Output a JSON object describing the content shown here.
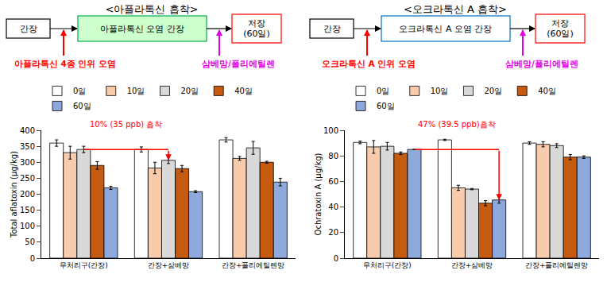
{
  "panels": [
    {
      "title": "<아플라톡신 흡착>",
      "flow": {
        "boxes": [
          [
            "간장"
          ],
          [
            "아플라톡신 오염 간장"
          ],
          [
            "저장",
            "(60일)"
          ]
        ],
        "inputs": [
          {
            "text": "아플라톡신 4종 인위 오염",
            "color": "#ff0000"
          },
          {
            "text": "삼베망/폴리에틸렌",
            "color": "#e000e0"
          }
        ]
      }
    },
    {
      "title": "<오크라톡신 A 흡착>",
      "flow": {
        "boxes": [
          [
            "간장"
          ],
          [
            "오크라톡신 A 오염 간장"
          ],
          [
            "저장",
            "(60일)"
          ]
        ],
        "inputs": [
          {
            "text": "오크라톡신 A 인위 오염",
            "color": "#ff0000"
          },
          {
            "text": "삼베망/폴리에틸렌",
            "color": "#e000e0"
          }
        ]
      }
    }
  ],
  "chart_data": [
    {
      "type": "bar",
      "y_label": "Total aflatoxin (μg/kg)",
      "categories": [
        "무처리구(간장)",
        "간장+삼베망",
        "간장+폴리에틸렌망"
      ],
      "series": [
        {
          "name": "0일",
          "color": "#ffffff",
          "values": [
            360,
            340,
            370
          ],
          "errors": [
            10,
            8,
            7
          ]
        },
        {
          "name": "10일",
          "color": "#f8cbad",
          "values": [
            330,
            282,
            312
          ],
          "errors": [
            20,
            18,
            6
          ]
        },
        {
          "name": "20일",
          "color": "#d9d9d9",
          "values": [
            340,
            306,
            345
          ],
          "errors": [
            10,
            10,
            20
          ]
        },
        {
          "name": "40일",
          "color": "#c55a11",
          "values": [
            290,
            280,
            300
          ],
          "errors": [
            12,
            10,
            3
          ]
        },
        {
          "name": "60일",
          "color": "#8ea9db",
          "values": [
            220,
            208,
            238
          ],
          "errors": [
            5,
            3,
            12
          ]
        }
      ],
      "ylim": [
        0,
        400
      ],
      "yticks": [
        0,
        50,
        100,
        150,
        200,
        250,
        300,
        350,
        400
      ],
      "grid": false,
      "legend": "top",
      "annotations": [
        {
          "text": "10% (35 ppb) 흡착",
          "from": "무처리구(간장)",
          "to": "간장+삼베망",
          "series": "20일",
          "color": "#ff0000"
        }
      ]
    },
    {
      "type": "bar",
      "y_label": "Ochratoxin A (μg/kg)",
      "categories": [
        "무처리구(간장)",
        "간장+삼베망",
        "간장+폴리에틸렌망"
      ],
      "series": [
        {
          "name": "0일",
          "color": "#ffffff",
          "values": [
            90.5,
            92.5,
            90
          ],
          "errors": [
            1,
            0.5,
            1
          ]
        },
        {
          "name": "10일",
          "color": "#f8cbad",
          "values": [
            87,
            55,
            89
          ],
          "errors": [
            5,
            2,
            2
          ]
        },
        {
          "name": "20일",
          "color": "#d9d9d9",
          "values": [
            87.5,
            54,
            88
          ],
          "errors": [
            3,
            0.5,
            1.5
          ]
        },
        {
          "name": "40일",
          "color": "#c55a11",
          "values": [
            82,
            43,
            79
          ],
          "errors": [
            1,
            2,
            2
          ]
        },
        {
          "name": "60일",
          "color": "#8ea9db",
          "values": [
            85,
            45.5,
            79
          ],
          "errors": [
            0,
            2.5,
            1
          ]
        }
      ],
      "ylim": [
        0,
        100
      ],
      "yticks": [
        0,
        20,
        40,
        60,
        80,
        100
      ],
      "grid": false,
      "legend": "top",
      "annotations": [
        {
          "text": "47% (39.5 ppb)흡착",
          "from": "무처리구(간장)",
          "to": "간장+삼베망",
          "series": "60일",
          "color": "#ff0000"
        }
      ]
    }
  ]
}
